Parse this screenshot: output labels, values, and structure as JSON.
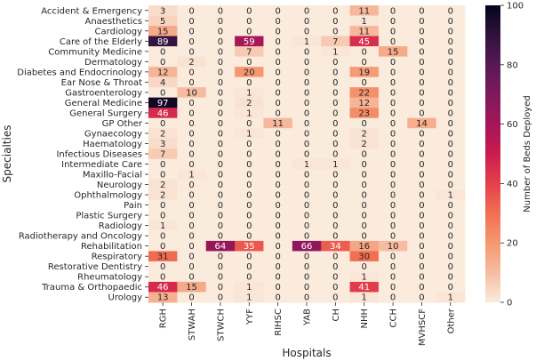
{
  "chart_data": {
    "type": "heatmap",
    "title": "",
    "xlabel": "Hospitals",
    "ylabel": "Specialties",
    "colorbar_label": "Number of Beds Deployed",
    "colorbar_range": [
      0,
      100
    ],
    "colorbar_ticks": [
      0,
      20,
      40,
      60,
      80,
      100
    ],
    "colormap": "rocket_r",
    "x_categories": [
      "RGH",
      "STWAH",
      "STWCH",
      "YYF",
      "RIHSC",
      "YAB",
      "CH",
      "NHH",
      "CCH",
      "MVHSCF",
      "Other"
    ],
    "y_categories": [
      "Accident & Emergency",
      "Anaesthetics",
      "Cardiology",
      "Care of the Elderly",
      "Community Medicine",
      "Dermatology",
      "Diabetes and Endocrinology",
      "Ear Nose & Throat",
      "Gastroenterology",
      "General Medicine",
      "General Surgery",
      "GP Other",
      "Gynaecology",
      "Haematology",
      "Infectious Diseases",
      "Intermediate Care",
      "Maxillo-Facial",
      "Neurology",
      "Ophthalmology",
      "Pain",
      "Plastic Surgery",
      "Radiology",
      "Radiotherapy and Oncology",
      "Rehabilitation",
      "Respiratory",
      "Restorative Dentistry",
      "Rheumatology",
      "Trauma & Orthopaedic",
      "Urology"
    ],
    "values": [
      [
        3,
        0,
        0,
        0,
        0,
        0,
        0,
        11,
        0,
        0,
        0
      ],
      [
        5,
        0,
        0,
        0,
        0,
        0,
        0,
        1,
        0,
        0,
        0
      ],
      [
        15,
        0,
        0,
        0,
        0,
        0,
        0,
        11,
        0,
        0,
        0
      ],
      [
        89,
        0,
        0,
        59,
        0,
        1,
        7,
        45,
        0,
        0,
        0
      ],
      [
        0,
        0,
        0,
        7,
        0,
        0,
        1,
        0,
        15,
        0,
        0
      ],
      [
        0,
        2,
        0,
        0,
        0,
        0,
        0,
        0,
        0,
        0,
        0
      ],
      [
        12,
        0,
        0,
        20,
        0,
        0,
        0,
        19,
        0,
        0,
        0
      ],
      [
        4,
        0,
        0,
        0,
        0,
        0,
        0,
        0,
        0,
        0,
        0
      ],
      [
        0,
        10,
        0,
        1,
        0,
        0,
        0,
        22,
        0,
        0,
        0
      ],
      [
        97,
        0,
        0,
        2,
        0,
        0,
        0,
        12,
        0,
        0,
        0
      ],
      [
        46,
        0,
        0,
        1,
        0,
        0,
        0,
        23,
        0,
        0,
        0
      ],
      [
        0,
        0,
        0,
        0,
        11,
        0,
        0,
        0,
        0,
        14,
        0
      ],
      [
        2,
        0,
        0,
        1,
        0,
        0,
        0,
        2,
        0,
        0,
        0
      ],
      [
        3,
        0,
        0,
        0,
        0,
        0,
        0,
        2,
        0,
        0,
        0
      ],
      [
        7,
        0,
        0,
        0,
        0,
        0,
        0,
        0,
        0,
        0,
        0
      ],
      [
        0,
        0,
        0,
        0,
        0,
        1,
        1,
        0,
        0,
        0,
        0
      ],
      [
        0,
        1,
        0,
        0,
        0,
        0,
        0,
        0,
        0,
        0,
        0
      ],
      [
        2,
        0,
        0,
        0,
        0,
        0,
        0,
        0,
        0,
        0,
        0
      ],
      [
        2,
        0,
        0,
        0,
        0,
        0,
        0,
        0,
        0,
        0,
        1
      ],
      [
        0,
        0,
        0,
        0,
        0,
        0,
        0,
        0,
        0,
        0,
        0
      ],
      [
        0,
        0,
        0,
        0,
        0,
        0,
        0,
        0,
        0,
        0,
        0
      ],
      [
        1,
        0,
        0,
        0,
        0,
        0,
        0,
        0,
        0,
        0,
        0
      ],
      [
        0,
        0,
        0,
        0,
        0,
        0,
        0,
        0,
        0,
        0,
        0
      ],
      [
        0,
        0,
        64,
        35,
        0,
        66,
        34,
        16,
        10,
        0,
        0
      ],
      [
        31,
        0,
        0,
        0,
        0,
        0,
        0,
        30,
        0,
        0,
        0
      ],
      [
        0,
        0,
        0,
        0,
        0,
        0,
        0,
        0,
        0,
        0,
        0
      ],
      [
        0,
        0,
        0,
        0,
        0,
        0,
        0,
        1,
        0,
        0,
        0
      ],
      [
        46,
        15,
        0,
        1,
        0,
        0,
        0,
        41,
        0,
        0,
        0
      ],
      [
        13,
        0,
        0,
        1,
        0,
        0,
        0,
        1,
        0,
        0,
        1
      ]
    ]
  }
}
